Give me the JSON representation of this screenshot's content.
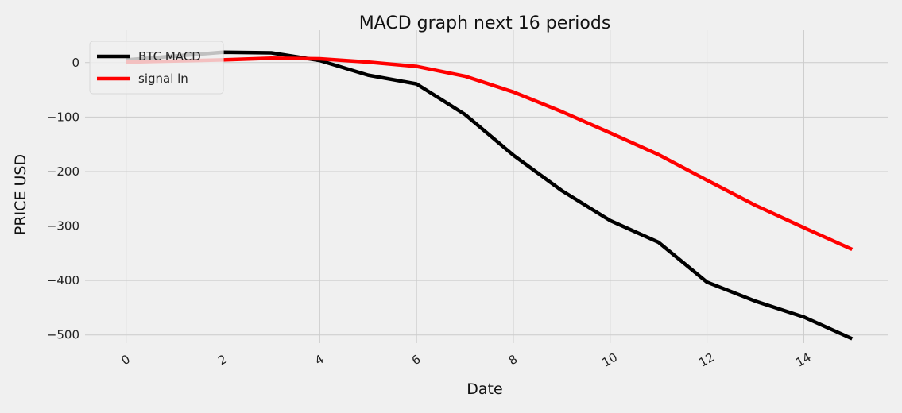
{
  "chart_data": {
    "type": "line",
    "title": "MACD graph next 16 periods",
    "xlabel": "Date",
    "ylabel": "PRICE USD",
    "x": [
      0,
      1,
      2,
      3,
      4,
      5,
      6,
      7,
      8,
      9,
      10,
      11,
      12,
      13,
      14,
      15
    ],
    "xlim": [
      -0.75,
      15.75
    ],
    "ylim": [
      -515,
      42
    ],
    "xticks": [
      0,
      2,
      4,
      6,
      8,
      10,
      12,
      14
    ],
    "yticks": [
      0,
      -100,
      -200,
      -300,
      -400,
      -500
    ],
    "ytick_labels": [
      "0",
      "−100",
      "−200",
      "−300",
      "−400",
      "−500"
    ],
    "grid": true,
    "legend_position": "upper-left",
    "series": [
      {
        "name": "BTC MACD",
        "color": "#000000",
        "values": [
          5,
          12,
          19,
          18,
          4,
          -23,
          -39,
          -95,
          -170,
          -235,
          -290,
          -330,
          -403,
          -438,
          -467,
          -507
        ]
      },
      {
        "name": "signal ln",
        "color": "#ff0000",
        "values": [
          1,
          3,
          5,
          8,
          7,
          1,
          -7,
          -25,
          -54,
          -90,
          -129,
          -169,
          -216,
          -262,
          -303,
          -343
        ]
      }
    ]
  }
}
